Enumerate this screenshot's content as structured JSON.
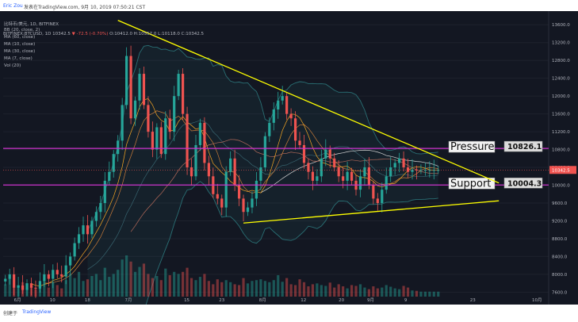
{
  "header": {
    "author": "Eric Zou",
    "published": "发表在TradingView.com, 9月 10, 2019 07:50:21 CST"
  },
  "symbol_line": {
    "symbol": "BITFINEX:BTCUSD, 1D",
    "last": "10342.5",
    "change": "▼ -72.5 (-0.70%)",
    "ohlc": "O:10412.0 H:10557.0 L:10118.0 C:10342.5"
  },
  "legend": [
    "比特币/美元, 1D, BITFINEX",
    "BB (20, close, 2)",
    "MA (60, close)",
    "MA (10, close)",
    "MA (30, close)",
    "MA (7, close)",
    "Vol (20)"
  ],
  "footer": {
    "made_with": "创建于",
    "logo_text": "TradingView"
  },
  "colors": {
    "background": "#131722",
    "up": "#26a69a",
    "down": "#ef5350",
    "trendline": "#ffff00",
    "level_line": "#cc33cc",
    "bollinger": "#2a6f74",
    "ma_fast": "#f5a623",
    "ma_slow": "#b46a5a",
    "ma_long": "#d4d4d4"
  },
  "chart_data": {
    "type": "candlestick",
    "title": "比特币/美元, 1D, BITFINEX",
    "y_ticks": [
      7600,
      8000,
      8400,
      8800,
      9200,
      9600,
      10000,
      10400,
      10800,
      11200,
      11600,
      12000,
      12400,
      12800,
      13200,
      13600
    ],
    "ylim": [
      7500,
      13800
    ],
    "x_ticks": [
      "6月",
      "10",
      "18",
      "7月",
      "15",
      "23",
      "8月",
      "12",
      "20",
      "9月",
      "9",
      "23",
      "10月"
    ],
    "last_price_label": "10342.5",
    "levels": [
      {
        "name": "Pressure",
        "value": 10826.1,
        "label": "10826.1"
      },
      {
        "name": "Support",
        "value": 10004.3,
        "label": "10004.3"
      }
    ],
    "trendlines": [
      {
        "name": "upper",
        "from": {
          "x": 26,
          "y": 13700
        },
        "to": {
          "x": 114,
          "y": 10050
        }
      },
      {
        "name": "lower",
        "from": {
          "x": 55,
          "y": 9150
        },
        "to": {
          "x": 114,
          "y": 9650
        }
      }
    ],
    "x": [
      0,
      1,
      2,
      3,
      4,
      5,
      6,
      7,
      8,
      9,
      10,
      11,
      12,
      13,
      14,
      15,
      16,
      17,
      18,
      19,
      20,
      21,
      22,
      23,
      24,
      25,
      26,
      27,
      28,
      29,
      30,
      31,
      32,
      33,
      34,
      35,
      36,
      37,
      38,
      39,
      40,
      41,
      42,
      43,
      44,
      45,
      46,
      47,
      48,
      49,
      50,
      51,
      52,
      53,
      54,
      55,
      56,
      57,
      58,
      59,
      60,
      61,
      62,
      63,
      64,
      65,
      66,
      67,
      68,
      69,
      70,
      71,
      72,
      73,
      74,
      75,
      76,
      77,
      78,
      79,
      80,
      81,
      82,
      83,
      84,
      85,
      86,
      87,
      88,
      89,
      90,
      91,
      92,
      93,
      94,
      95,
      96,
      97,
      98,
      99,
      100
    ],
    "close": [
      7900,
      8000,
      7700,
      7750,
      7650,
      7800,
      7700,
      7680,
      7850,
      8000,
      7900,
      8100,
      8000,
      7950,
      8200,
      8400,
      8700,
      8900,
      9100,
      8900,
      9200,
      9400,
      9600,
      10100,
      10300,
      10700,
      11000,
      11800,
      12900,
      11500,
      11900,
      12500,
      11800,
      11200,
      10800,
      11300,
      10700,
      11500,
      11200,
      12000,
      12500,
      11600,
      10400,
      10200,
      10900,
      11400,
      10500,
      10200,
      9800,
      9700,
      9500,
      10300,
      10600,
      10000,
      9700,
      9400,
      9500,
      9700,
      10100,
      10400,
      11100,
      11400,
      11700,
      11900,
      12000,
      11600,
      11500,
      11000,
      10900,
      10500,
      10300,
      10100,
      10200,
      10600,
      10800,
      10600,
      10400,
      10200,
      10100,
      10300,
      10100,
      9900,
      10200,
      10400,
      10000,
      9700,
      9600,
      9900,
      10200,
      10400,
      10500,
      10600,
      10400,
      10300,
      10350,
      10342,
      10342,
      10342,
      10342,
      10342,
      10342
    ],
    "volume": [
      30,
      45,
      22,
      28,
      35,
      20,
      25,
      18,
      30,
      40,
      22,
      35,
      28,
      20,
      40,
      55,
      45,
      60,
      38,
      42,
      50,
      55,
      40,
      70,
      48,
      55,
      65,
      90,
      100,
      85,
      60,
      72,
      80,
      55,
      45,
      50,
      40,
      68,
      52,
      60,
      55,
      60,
      70,
      45,
      40,
      48,
      55,
      38,
      30,
      42,
      35,
      40,
      35,
      30,
      28,
      45,
      32,
      38,
      40,
      42,
      38,
      35,
      40,
      52,
      36,
      45,
      30,
      28,
      42,
      35,
      25,
      30,
      32,
      28,
      26,
      34,
      22,
      30,
      25,
      20,
      28,
      26,
      30,
      22,
      18,
      25,
      20,
      22,
      28,
      24,
      20,
      18,
      26,
      22,
      15,
      14,
      12,
      12,
      12,
      12,
      12
    ],
    "indicators": [
      "BB (20, close, 2)",
      "MA (60, close)",
      "MA (10, close)",
      "MA (30, close)",
      "MA (7, close)",
      "Vol (20)"
    ]
  }
}
